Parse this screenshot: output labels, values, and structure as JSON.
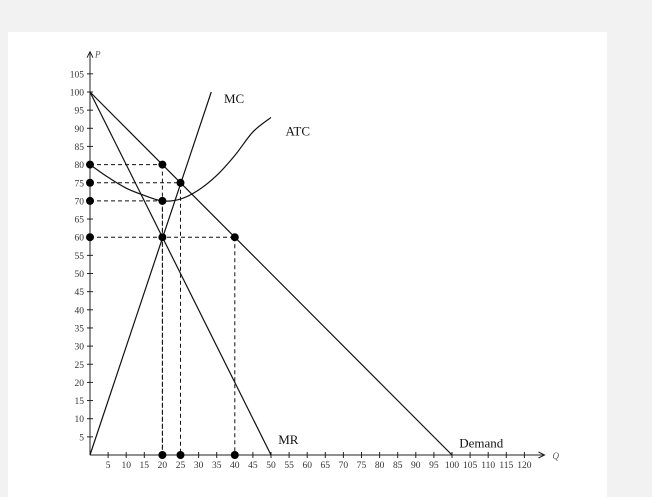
{
  "chart_data": {
    "type": "line",
    "xlabel": "Q",
    "ylabel": "P",
    "xlim": [
      0,
      125
    ],
    "ylim": [
      0,
      110
    ],
    "x_ticks": [
      5,
      10,
      15,
      20,
      25,
      30,
      35,
      40,
      45,
      50,
      55,
      60,
      65,
      70,
      75,
      80,
      85,
      90,
      95,
      100,
      105,
      110,
      115,
      120
    ],
    "y_ticks": [
      5,
      10,
      15,
      20,
      25,
      30,
      35,
      40,
      45,
      50,
      55,
      60,
      65,
      70,
      75,
      80,
      85,
      90,
      95,
      100,
      105
    ],
    "x_tick_labels": [
      "5",
      "10",
      "15",
      "20",
      "25",
      "30",
      "35",
      "40",
      "45",
      "50",
      "55",
      "60",
      "65",
      "70",
      "75",
      "80",
      "85",
      "90",
      "95",
      "100",
      "105",
      "110",
      "115",
      "120"
    ],
    "y_tick_labels": [
      "5",
      "10",
      "15",
      "20",
      "25",
      "30",
      "35",
      "40",
      "45",
      "50",
      "55",
      "60",
      "65",
      "70",
      "75",
      "80",
      "85",
      "90",
      "95",
      "100",
      "105"
    ],
    "series": [
      {
        "name": "Demand",
        "x": [
          0,
          100
        ],
        "y": [
          100,
          0
        ]
      },
      {
        "name": "MR",
        "x": [
          0,
          50
        ],
        "y": [
          100,
          0
        ]
      },
      {
        "name": "MC",
        "x": [
          0,
          33.5
        ],
        "y": [
          0,
          100
        ]
      },
      {
        "name": "ATC",
        "x": [
          0,
          5,
          10,
          15,
          20,
          25,
          30,
          35,
          40,
          45,
          50
        ],
        "y": [
          80,
          76.5,
          73.5,
          71.5,
          70,
          70.5,
          73,
          77,
          82.5,
          89,
          93
        ]
      }
    ],
    "points": [
      {
        "x": 20,
        "y": 80
      },
      {
        "x": 25,
        "y": 75
      },
      {
        "x": 20,
        "y": 70
      },
      {
        "x": 20,
        "y": 60
      },
      {
        "x": 40,
        "y": 60
      },
      {
        "x": 0,
        "y": 80
      },
      {
        "x": 0,
        "y": 75
      },
      {
        "x": 0,
        "y": 70
      },
      {
        "x": 0,
        "y": 60
      },
      {
        "x": 20,
        "y": 0
      },
      {
        "x": 25,
        "y": 0
      },
      {
        "x": 40,
        "y": 0
      }
    ],
    "dashed_guides": [
      {
        "x": 20,
        "y": 80
      },
      {
        "x": 25,
        "y": 75
      },
      {
        "x": 20,
        "y": 70
      },
      {
        "x": 40,
        "y": 60
      }
    ],
    "curve_labels": [
      {
        "text": "MC",
        "x": 37,
        "y": 97
      },
      {
        "text": "ATC",
        "x": 54,
        "y": 88
      },
      {
        "text": "MR",
        "x": 52,
        "y": 3
      },
      {
        "text": "Demand",
        "x": 102,
        "y": 2
      }
    ]
  }
}
